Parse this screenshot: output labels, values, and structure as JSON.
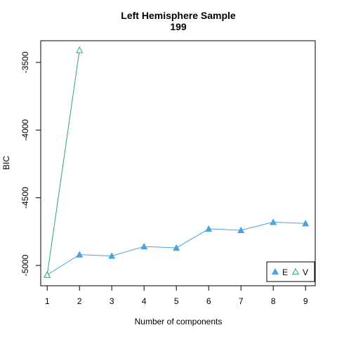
{
  "chart_data": {
    "type": "line",
    "title": [
      "Left Hemisphere Sample",
      "199"
    ],
    "xlabel": "Number of components",
    "ylabel": "BIC",
    "xlim": [
      0.8,
      9.3
    ],
    "ylim": [
      -5150,
      -3340
    ],
    "xticks": [
      1,
      2,
      3,
      4,
      5,
      6,
      7,
      8,
      9
    ],
    "yticks": [
      -5000,
      -4500,
      -4000,
      -3500
    ],
    "legend_position": "bottom-right",
    "series": [
      {
        "name": "E",
        "color": "#4da3dc",
        "marker": "filled-triangle",
        "x": [
          1,
          2,
          3,
          4,
          5,
          6,
          7,
          8,
          9
        ],
        "y": [
          -5070,
          -4920,
          -4930,
          -4860,
          -4870,
          -4730,
          -4740,
          -4680,
          -4690
        ]
      },
      {
        "name": "V",
        "color": "#2aa37a",
        "marker": "open-triangle",
        "x": [
          1,
          2
        ],
        "y": [
          -5070,
          -3410
        ]
      }
    ]
  }
}
